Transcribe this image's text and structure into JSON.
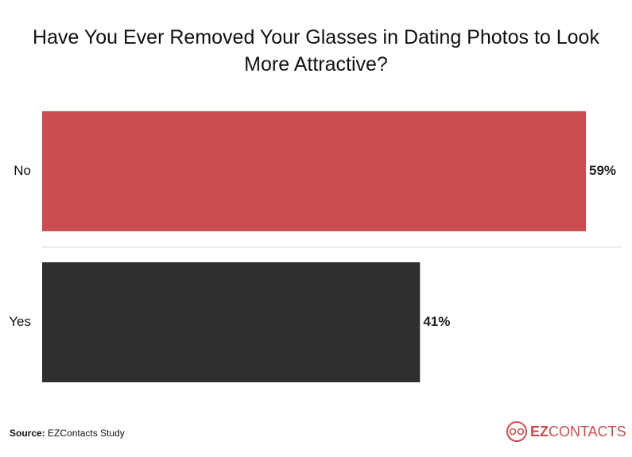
{
  "chart_data": {
    "type": "bar",
    "orientation": "horizontal",
    "title": "Have You Ever Removed Your Glasses in Dating Photos to Look More Attractive?",
    "categories": [
      "No",
      "Yes"
    ],
    "values": [
      59,
      41
    ],
    "value_labels": [
      "59%",
      "41%"
    ],
    "colors": [
      "#cb4d50",
      "#2f2f2f"
    ],
    "source_label": "Source:",
    "source": "EZContacts Study",
    "logo": {
      "bold": "EZ",
      "rest": "CONTACTS"
    }
  }
}
